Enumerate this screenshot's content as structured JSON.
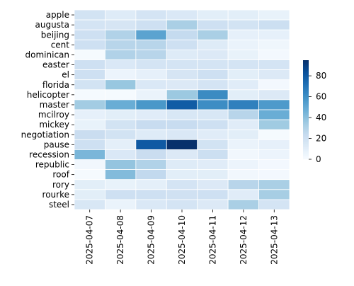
{
  "chart_data": {
    "type": "heatmap",
    "x": [
      "2025-04-07",
      "2025-04-08",
      "2025-04-09",
      "2025-04-10",
      "2025-04-11",
      "2025-04-12",
      "2025-04-13"
    ],
    "y": [
      "apple",
      "augusta",
      "beijing",
      "cent",
      "dominican",
      "easter",
      "el",
      "florida",
      "helicopter",
      "master",
      "mcilroy",
      "mickey",
      "negotiation",
      "pause",
      "recession",
      "republic",
      "roof",
      "rory",
      "rourke",
      "steel"
    ],
    "values": [
      [
        18,
        12,
        17,
        14,
        10,
        10,
        7
      ],
      [
        17,
        16,
        20,
        32,
        20,
        18,
        21
      ],
      [
        20,
        30,
        52,
        24,
        32,
        8,
        8
      ],
      [
        20,
        28,
        28,
        20,
        12,
        6,
        4
      ],
      [
        1,
        30,
        28,
        12,
        13,
        7,
        2
      ],
      [
        20,
        14,
        17,
        17,
        17,
        17,
        17
      ],
      [
        20,
        5,
        8,
        16,
        20,
        10,
        13
      ],
      [
        18,
        37,
        14,
        13,
        17,
        11,
        2
      ],
      [
        1,
        1,
        6,
        36,
        62,
        10,
        13
      ],
      [
        34,
        48,
        57,
        79,
        61,
        66,
        56
      ],
      [
        8,
        10,
        11,
        15,
        15,
        28,
        48
      ],
      [
        7,
        18,
        23,
        23,
        20,
        11,
        35
      ],
      [
        22,
        18,
        12,
        14,
        11,
        10,
        1
      ],
      [
        20,
        9,
        80,
        95,
        18,
        6,
        8
      ],
      [
        44,
        14,
        22,
        13,
        21,
        3,
        5
      ],
      [
        3,
        38,
        30,
        12,
        11,
        5,
        2
      ],
      [
        1,
        42,
        25,
        10,
        10,
        3,
        2
      ],
      [
        10,
        7,
        9,
        17,
        13,
        28,
        32
      ],
      [
        10,
        20,
        20,
        19,
        20,
        11,
        33
      ],
      [
        15,
        6,
        14,
        17,
        13,
        32,
        17
      ]
    ],
    "colorbar": {
      "ticks": [
        0,
        20,
        40,
        60,
        80
      ],
      "vmin": 0,
      "vmax": 95,
      "colormap": "Blues"
    },
    "grid": true,
    "title": "",
    "xlabel": "",
    "ylabel": ""
  }
}
